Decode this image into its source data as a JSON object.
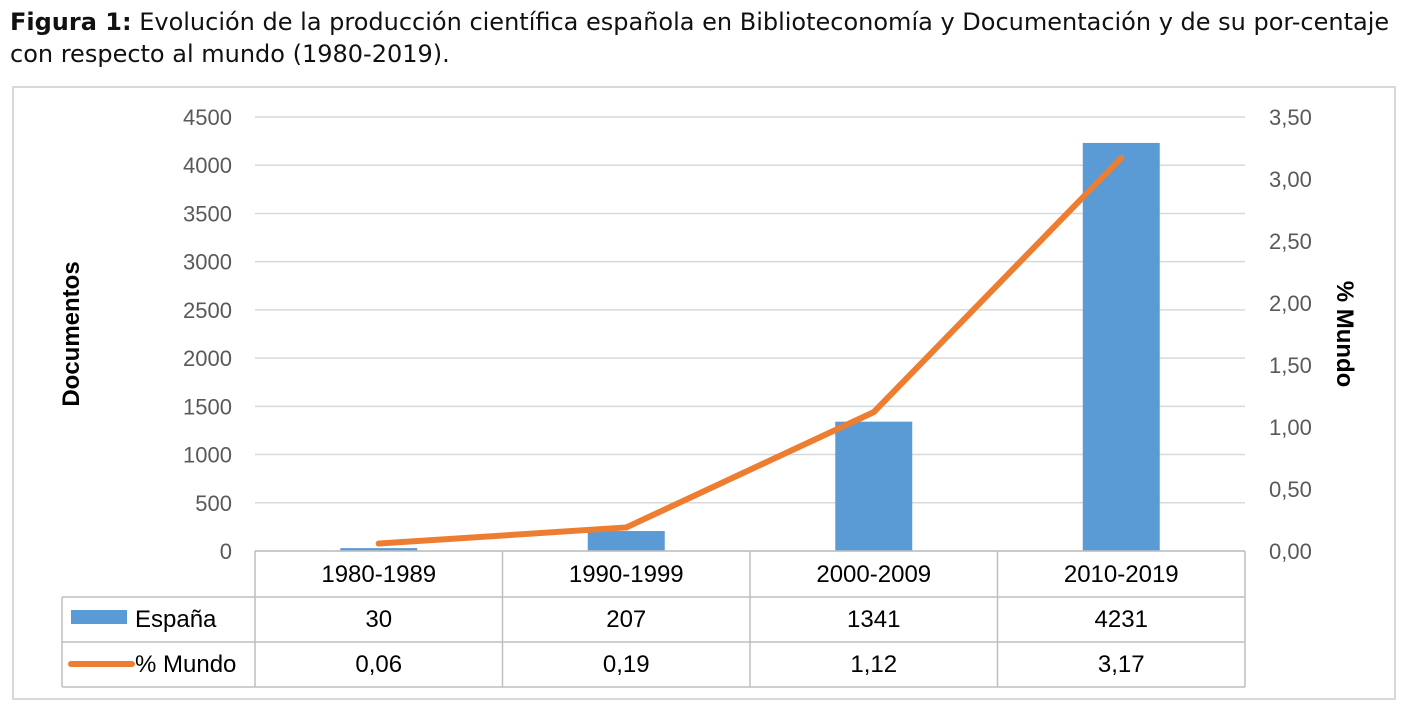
{
  "caption": {
    "label": "Figura 1:",
    "text": " Evolución de la producción científica española en Biblioteconomía y Documentación y de su por-centaje con respecto al mundo (1980-2019)."
  },
  "chart_data": {
    "type": "bar",
    "categories": [
      "1980-1989",
      "1990-1999",
      "2000-2009",
      "2010-2019"
    ],
    "series": [
      {
        "name": "España",
        "type": "bar",
        "axis": "left",
        "color": "#5b9bd5",
        "values": [
          30,
          207,
          1341,
          4231
        ],
        "labels": [
          "30",
          "207",
          "1341",
          "4231"
        ]
      },
      {
        "name": "% Mundo",
        "type": "line",
        "axis": "right",
        "color": "#ed7d31",
        "values": [
          0.06,
          0.19,
          1.12,
          3.17
        ],
        "labels": [
          "0,06",
          "0,19",
          "1,12",
          "3,17"
        ]
      }
    ],
    "ylabel": "Documentos",
    "y2label": "% Mundo",
    "ylim": [
      0,
      4500
    ],
    "y2lim": [
      0,
      3.5
    ],
    "yticks": [
      "0",
      "500",
      "1000",
      "1500",
      "2000",
      "2500",
      "3000",
      "3500",
      "4000",
      "4500"
    ],
    "y2ticks": [
      "0,00",
      "0,50",
      "1,00",
      "1,50",
      "2,00",
      "2,50",
      "3,00",
      "3,50"
    ],
    "grid": true,
    "legend": "data-table"
  }
}
